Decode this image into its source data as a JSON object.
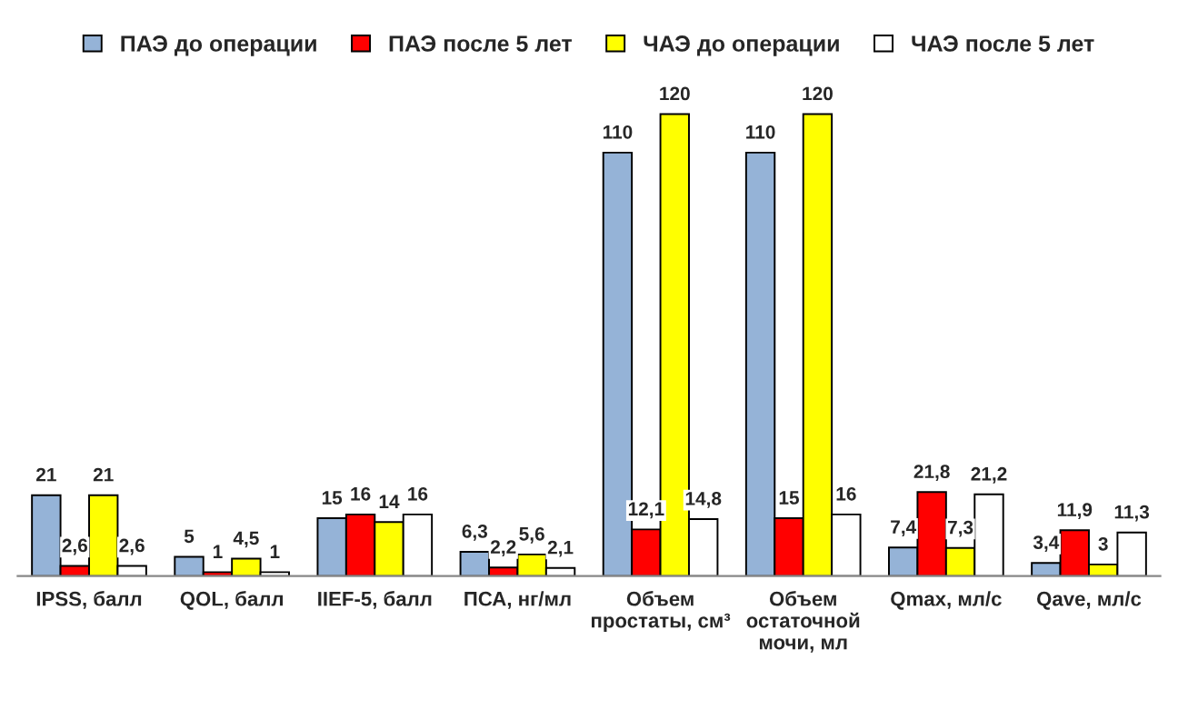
{
  "chart_data": {
    "type": "bar",
    "categories": [
      "IPSS, балл",
      "QOL, балл",
      "IIEF-5, балл",
      "ПСА, нг/мл",
      "Объем\nпростаты, см³",
      "Объем\nостаточной\nмочи, мл",
      "Qmax, мл/с",
      "Qave, мл/с"
    ],
    "series": [
      {
        "name": "ПАЭ до операции",
        "color": "#95b3d7",
        "values": [
          21,
          5,
          15,
          6.3,
          110,
          110,
          7.4,
          3.4
        ],
        "value_labels": [
          "21",
          "5",
          "15",
          "6,3",
          "110",
          "110",
          "7,4",
          "3,4"
        ]
      },
      {
        "name": "ПАЭ после 5 лет",
        "color": "#ff0000",
        "values": [
          2.6,
          1,
          16,
          2.2,
          12.1,
          15,
          21.8,
          11.9
        ],
        "value_labels": [
          "2,6",
          "1",
          "16",
          "2,2",
          "12,1",
          "15",
          "21,8",
          "11,9"
        ]
      },
      {
        "name": "ЧАЭ до операции",
        "color": "#ffff00",
        "values": [
          21,
          4.5,
          14,
          5.6,
          120,
          120,
          7.3,
          3
        ],
        "value_labels": [
          "21",
          "4,5",
          "14",
          "5,6",
          "120",
          "120",
          "7,3",
          "3"
        ]
      },
      {
        "name": "ЧАЭ после 5 лет",
        "color": "#ffffff",
        "values": [
          2.6,
          1,
          16,
          2.1,
          14.8,
          16,
          21.2,
          11.3
        ],
        "value_labels": [
          "2,6",
          "1",
          "16",
          "2,1",
          "14,8",
          "16",
          "21,2",
          "11,3"
        ]
      }
    ],
    "legend": "top",
    "grid": false,
    "tick_labels": "x"
  }
}
